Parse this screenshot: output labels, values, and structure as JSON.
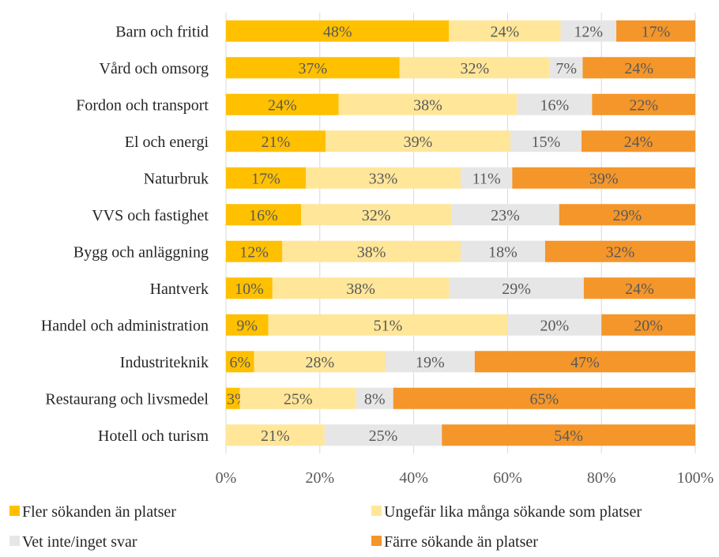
{
  "chart_data": {
    "type": "bar",
    "orientation": "horizontal",
    "stacked": true,
    "percent_stacked": true,
    "categories": [
      "Barn och fritid",
      "Vård och omsorg",
      "Fordon och transport",
      "El och energi",
      "Naturbruk",
      "VVS och fastighet",
      "Bygg och anläggning",
      "Hantverk",
      "Handel och administration",
      "Industriteknik",
      "Restaurang och livsmedel",
      "Hotell och turism"
    ],
    "series": [
      {
        "name": "Fler sökanden än platser",
        "color": "#FFC000",
        "values": [
          48,
          37,
          24,
          21,
          17,
          16,
          12,
          10,
          9,
          6,
          3,
          0
        ],
        "labels": [
          "48%",
          "37%",
          "24%",
          "21%",
          "17%",
          "16%",
          "12%",
          "10%",
          "9%",
          "6%",
          "3%",
          ""
        ]
      },
      {
        "name": "Ungefär lika många sökande som platser",
        "color": "#FFE699",
        "values": [
          24,
          32,
          38,
          39,
          33,
          32,
          38,
          38,
          51,
          28,
          25,
          21
        ],
        "labels": [
          "24%",
          "32%",
          "38%",
          "39%",
          "33%",
          "32%",
          "38%",
          "38%",
          "51%",
          "28%",
          "25%",
          "21%"
        ]
      },
      {
        "name": "Vet inte/inget svar",
        "color": "#E7E6E6",
        "values": [
          12,
          7,
          16,
          15,
          11,
          23,
          18,
          29,
          20,
          19,
          8,
          25
        ],
        "labels": [
          "12%",
          "7%",
          "16%",
          "15%",
          "11%",
          "23%",
          "18%",
          "29%",
          "20%",
          "19%",
          "8%",
          "25%"
        ]
      },
      {
        "name": "Färre sökande än platser",
        "color": "#F4962A",
        "values": [
          17,
          24,
          22,
          24,
          39,
          29,
          32,
          24,
          20,
          47,
          65,
          54
        ],
        "labels": [
          "17%",
          "24%",
          "22%",
          "24%",
          "39%",
          "29%",
          "32%",
          "24%",
          "20%",
          "47%",
          "65%",
          "54%"
        ]
      }
    ],
    "x_ticks": [
      "0%",
      "20%",
      "40%",
      "60%",
      "80%",
      "100%"
    ],
    "xlim": [
      0,
      100
    ],
    "grid": "vertical",
    "legend_position": "bottom"
  }
}
